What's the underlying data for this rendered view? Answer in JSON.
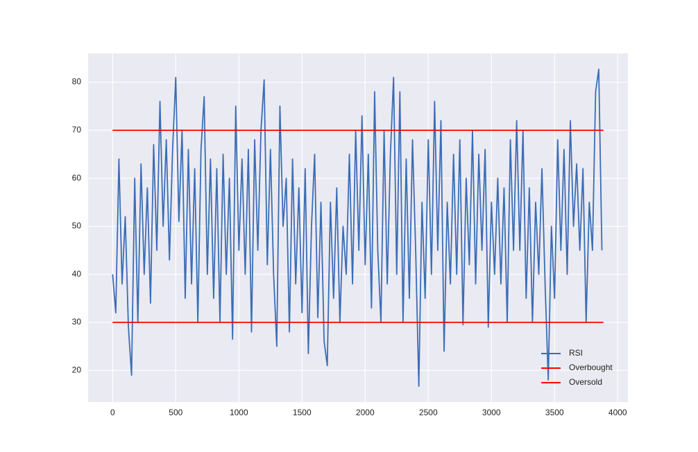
{
  "chart_data": {
    "type": "line",
    "xlim": [
      -194,
      4081
    ],
    "ylim": [
      13.4,
      86.0
    ],
    "xticks": [
      0,
      500,
      1000,
      1500,
      2000,
      2500,
      3000,
      3500,
      4000
    ],
    "yticks": [
      20,
      30,
      40,
      50,
      60,
      70,
      80
    ],
    "grid": true,
    "legend": "lower right",
    "series": [
      {
        "name": "RSI",
        "color": "#3a6db5",
        "x": [
          0,
          25,
          50,
          75,
          100,
          125,
          150,
          175,
          200,
          225,
          250,
          275,
          300,
          325,
          350,
          375,
          400,
          425,
          450,
          475,
          500,
          525,
          550,
          575,
          600,
          625,
          650,
          675,
          700,
          725,
          750,
          775,
          800,
          825,
          850,
          875,
          900,
          925,
          950,
          975,
          1000,
          1025,
          1050,
          1075,
          1100,
          1125,
          1150,
          1175,
          1200,
          1225,
          1250,
          1275,
          1300,
          1325,
          1350,
          1375,
          1400,
          1425,
          1450,
          1475,
          1500,
          1525,
          1550,
          1575,
          1600,
          1625,
          1650,
          1675,
          1700,
          1725,
          1750,
          1775,
          1800,
          1825,
          1850,
          1875,
          1900,
          1925,
          1950,
          1975,
          2000,
          2025,
          2050,
          2075,
          2100,
          2125,
          2150,
          2175,
          2200,
          2225,
          2250,
          2275,
          2300,
          2325,
          2350,
          2375,
          2400,
          2425,
          2450,
          2475,
          2500,
          2525,
          2550,
          2575,
          2600,
          2625,
          2650,
          2675,
          2700,
          2725,
          2750,
          2775,
          2800,
          2825,
          2850,
          2875,
          2900,
          2925,
          2950,
          2975,
          3000,
          3025,
          3050,
          3075,
          3100,
          3125,
          3150,
          3175,
          3200,
          3225,
          3250,
          3275,
          3300,
          3325,
          3350,
          3375,
          3400,
          3425,
          3450,
          3475,
          3500,
          3525,
          3550,
          3575,
          3600,
          3625,
          3650,
          3675,
          3700,
          3725,
          3750,
          3775,
          3800,
          3825,
          3850,
          3875
        ],
        "values": [
          40,
          32,
          64,
          38,
          52,
          29,
          19,
          60,
          30,
          63,
          40,
          58,
          34,
          67,
          45,
          76,
          50,
          68,
          43,
          66,
          81,
          51,
          70,
          35,
          66,
          38,
          62,
          30,
          66,
          77,
          40,
          64,
          35,
          62,
          30,
          65,
          40,
          60,
          26.5,
          75,
          45,
          64,
          40,
          66,
          28,
          68,
          45,
          70,
          80.5,
          42,
          66,
          40,
          25,
          75,
          50,
          60,
          28,
          64,
          38,
          58,
          32,
          62,
          23.5,
          50,
          65,
          31,
          55,
          26,
          21,
          55,
          35,
          58,
          30,
          50,
          40,
          65,
          38,
          70,
          45,
          73,
          42,
          65,
          33,
          78,
          45,
          30,
          70,
          38,
          65,
          81,
          40,
          78,
          30,
          64,
          35,
          68,
          45,
          16.7,
          55,
          35,
          68,
          40,
          76,
          45,
          72,
          24,
          55,
          38,
          65,
          40,
          68,
          29.5,
          60,
          42,
          70,
          38,
          65,
          45,
          66,
          29,
          55,
          40,
          60,
          38,
          58,
          30,
          68,
          45,
          72,
          45,
          70,
          35,
          58,
          30,
          55,
          40,
          62,
          38,
          18,
          50,
          35,
          68,
          45,
          66,
          40,
          72,
          50,
          63,
          45,
          62,
          30,
          55,
          45,
          78,
          82.7,
          45
        ]
      },
      {
        "name": "Overbought",
        "color": "#ff0000",
        "x": [
          0,
          3887
        ],
        "values": [
          70,
          70
        ]
      },
      {
        "name": "Oversold",
        "color": "#ff0000",
        "x": [
          0,
          3887
        ],
        "values": [
          30,
          30
        ]
      }
    ]
  }
}
